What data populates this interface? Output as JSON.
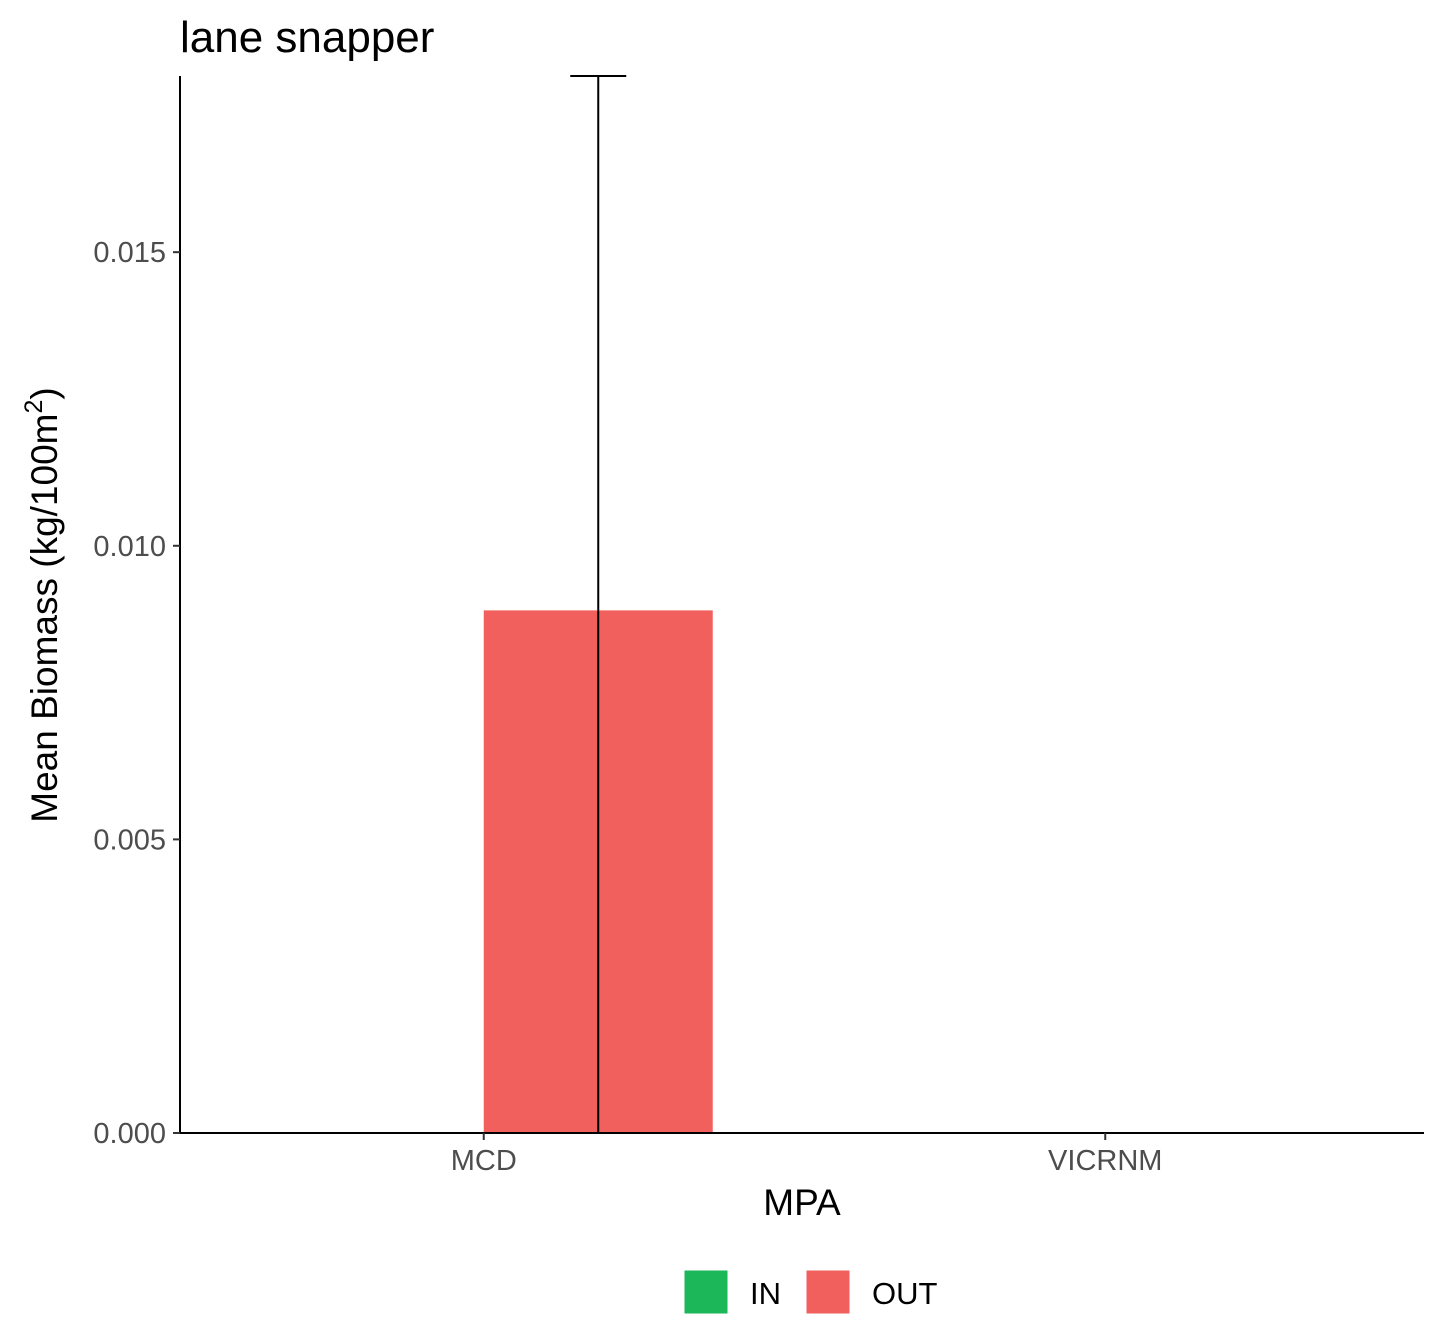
{
  "chart_data": {
    "type": "bar",
    "title": "lane snapper",
    "xlabel": "MPA",
    "ylabel": "Mean Biomass (kg/100m",
    "ylabel_sup": "2",
    "ylabel_suffix": ")",
    "categories": [
      "MCD",
      "VICRNM"
    ],
    "series": [
      {
        "name": "IN",
        "color": "#1bb759",
        "values": [
          0,
          0
        ],
        "err_upper": [
          0,
          0
        ]
      },
      {
        "name": "OUT",
        "color": "#f2605d",
        "values": [
          0.0089,
          0
        ],
        "err_upper": [
          0.018,
          0
        ]
      }
    ],
    "ylim": [
      0,
      0.018
    ],
    "yticks": [
      0.0,
      0.005,
      0.01,
      0.015
    ],
    "ytick_labels": [
      "0.000",
      "0.005",
      "0.010",
      "0.015"
    ],
    "grid": false,
    "legend_position": "bottom"
  }
}
